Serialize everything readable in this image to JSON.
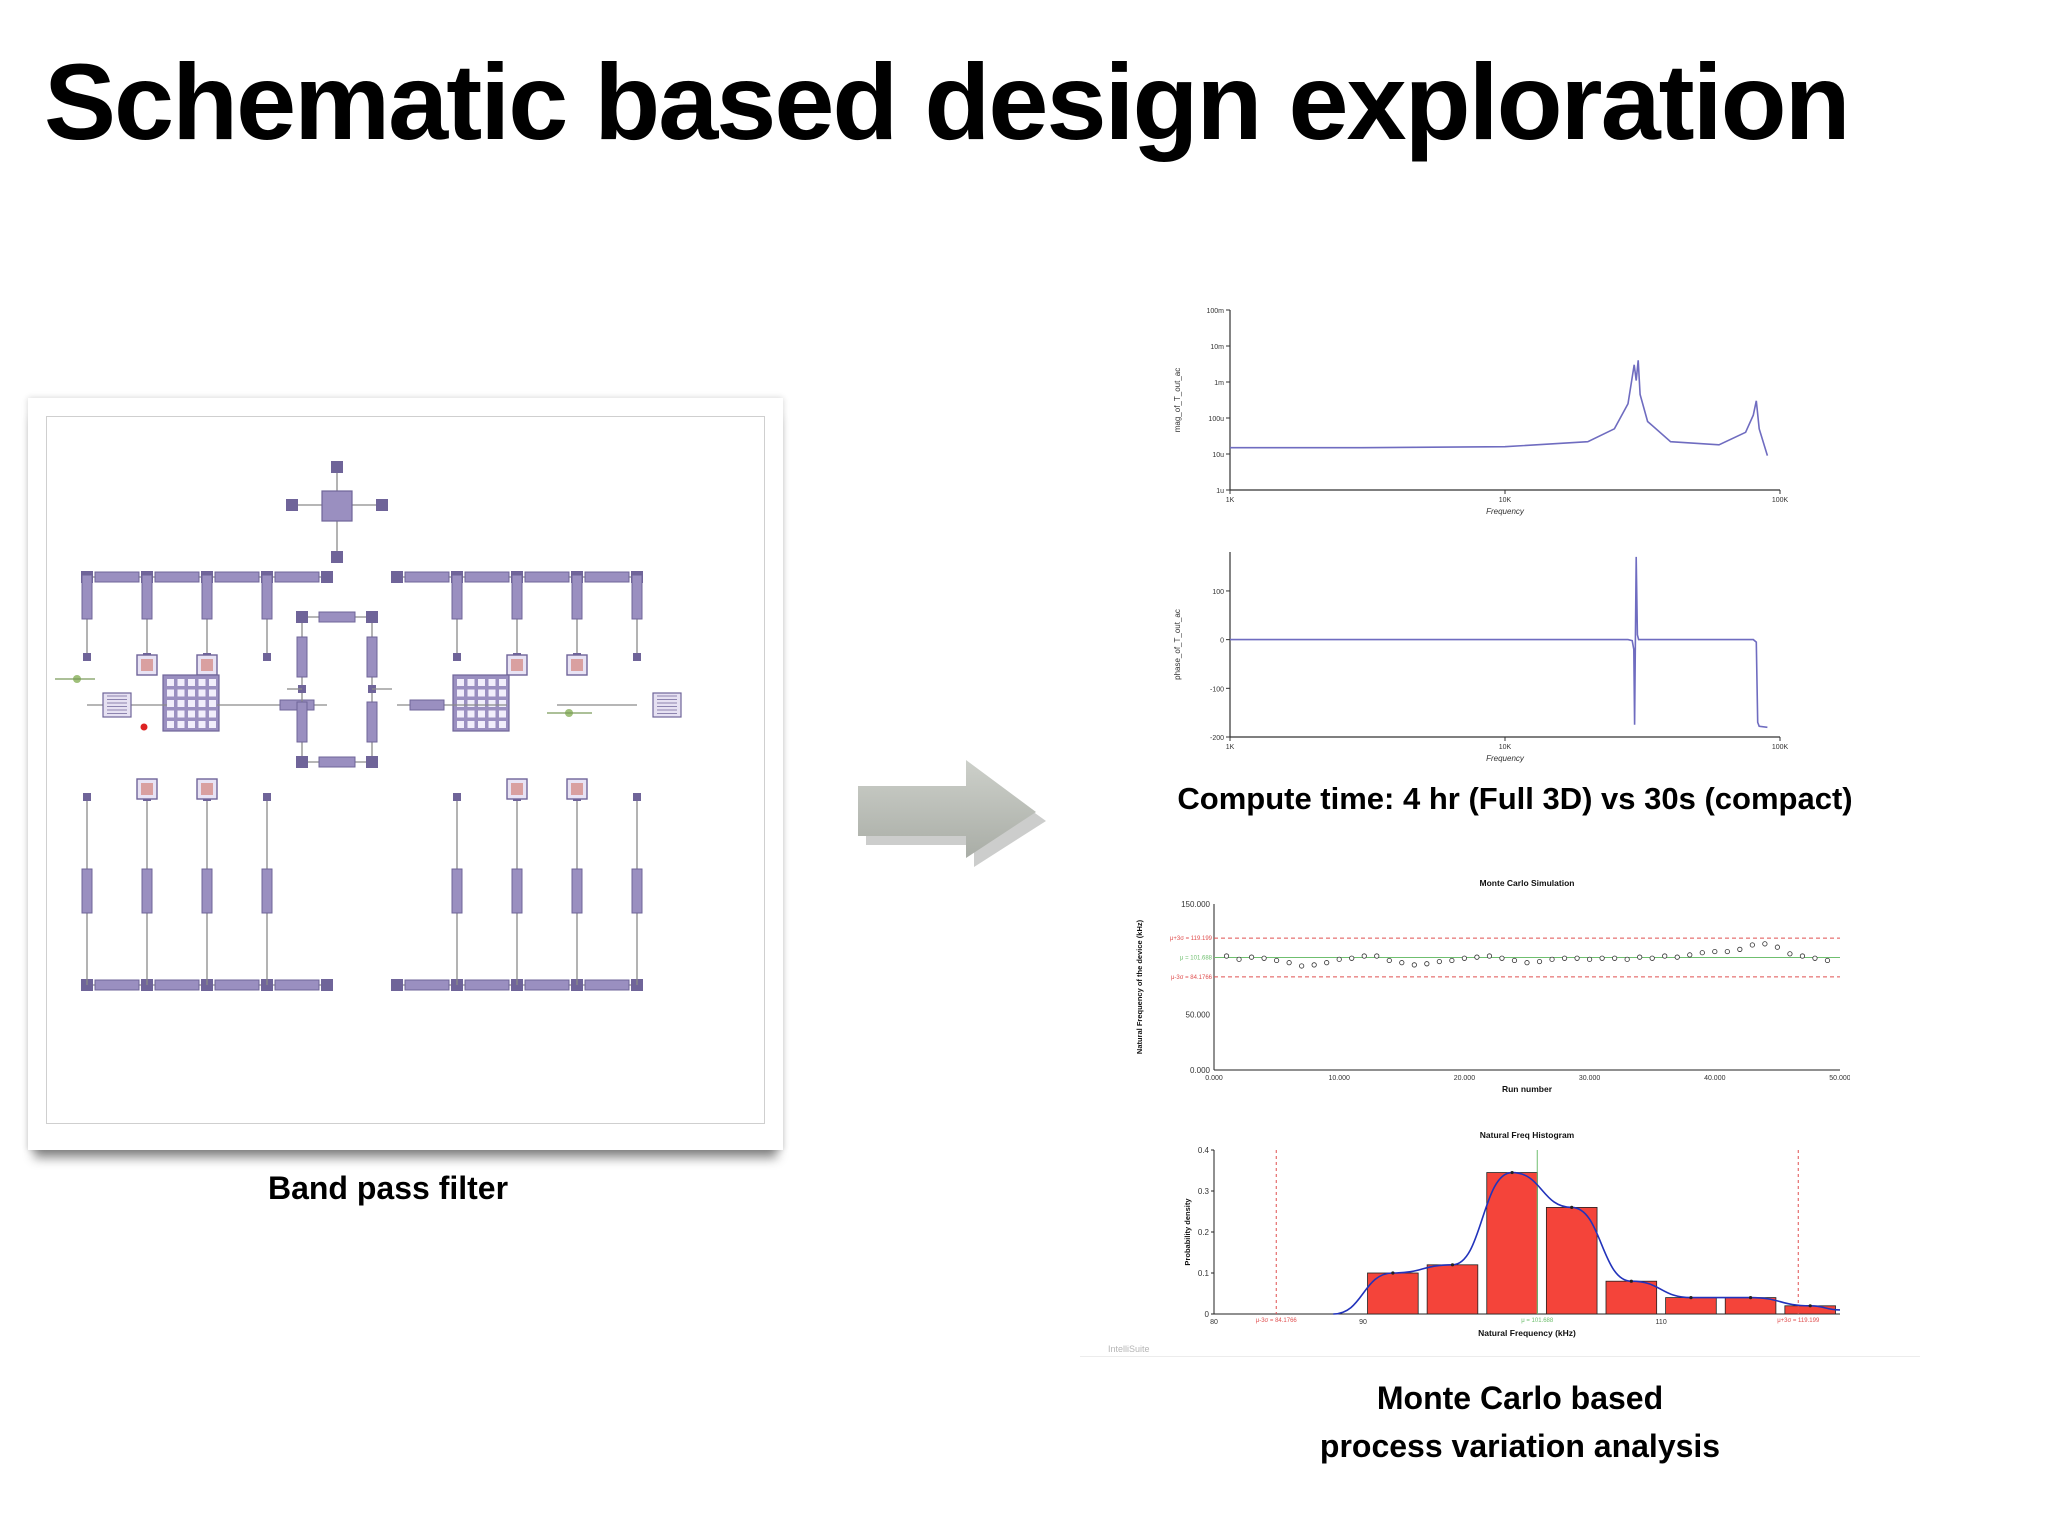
{
  "slide": {
    "title": "Schematic based design exploration",
    "left_caption": "Band pass filter",
    "compute_caption": "Compute time: 4 hr (Full 3D) vs 30s (compact)",
    "mc_caption_line1": "Monte Carlo based",
    "mc_caption_line2": "process variation analysis",
    "watermark": "IntelliSuite"
  },
  "colors": {
    "component": "#9a8fc0",
    "component_dark": "#6f6499",
    "wire": "#8a8a8a",
    "trace": "#6f6cc0",
    "bar": "#f4443a",
    "fit_curve": "#2233bb",
    "limit_line": "#e05050",
    "mean_line": "#6fbf6f",
    "arrow": "#b9bdb6"
  },
  "chart_data": [
    {
      "type": "line",
      "title": "",
      "xlabel": "Frequency",
      "ylabel": "mag_of_T_out_ac",
      "xscale": "log",
      "yscale": "log",
      "xlim": [
        1000,
        100000
      ],
      "x_ticks": [
        "1K",
        "10K",
        "100K"
      ],
      "y_ticks": [
        "100m",
        "10m",
        "1m",
        "100u",
        "10u",
        "1u"
      ],
      "series": [
        {
          "x": [
            1000,
            3000,
            10000,
            20000,
            25000,
            28000,
            29500,
            30000,
            30500,
            31000,
            33000,
            40000,
            60000,
            75000,
            80000,
            82000,
            84000,
            90000
          ],
          "y": [
            1.5e-05,
            1.5e-05,
            1.6e-05,
            2.2e-05,
            5e-05,
            0.00025,
            0.003,
            0.0011,
            0.004,
            0.00045,
            8e-05,
            2.2e-05,
            1.8e-05,
            4e-05,
            0.00012,
            0.0003,
            5e-05,
            9e-06
          ]
        }
      ]
    },
    {
      "type": "line",
      "title": "",
      "xlabel": "Frequency",
      "ylabel": "phase_of_T_out_ac",
      "xscale": "log",
      "xlim": [
        1000,
        100000
      ],
      "ylim": [
        -200,
        180
      ],
      "x_ticks": [
        "1K",
        "10K",
        "100K"
      ],
      "y_ticks": [
        100,
        0,
        -100,
        -200
      ],
      "series": [
        {
          "x": [
            1000,
            28000,
            29000,
            29400,
            29600,
            29800,
            30000,
            30300,
            30600,
            32000,
            80000,
            82000,
            83000,
            84000,
            90000
          ],
          "y": [
            0,
            0,
            -2,
            -20,
            -175,
            0,
            170,
            10,
            0,
            0,
            0,
            -5,
            -170,
            -178,
            -180
          ]
        }
      ]
    },
    {
      "type": "scatter",
      "title": "Monte Carlo Simulation",
      "xlabel": "Run number",
      "ylabel": "Natural Frequency of the device (kHz)",
      "xlim": [
        0,
        50
      ],
      "ylim": [
        0,
        150
      ],
      "x_ticks": [
        "0.000",
        "10.000",
        "20.000",
        "30.000",
        "40.000",
        "50.000"
      ],
      "y_ticks": [
        "0.000",
        "50.000",
        "150.000"
      ],
      "reference_lines": [
        {
          "label": "μ+3σ = 119.199",
          "value": 119.199
        },
        {
          "label": "μ = 101.688",
          "value": 101.688
        },
        {
          "label": "μ-3σ = 84.1766",
          "value": 84.1766
        }
      ],
      "x": [
        1,
        2,
        3,
        4,
        5,
        6,
        7,
        8,
        9,
        10,
        11,
        12,
        13,
        14,
        15,
        16,
        17,
        18,
        19,
        20,
        21,
        22,
        23,
        24,
        25,
        26,
        27,
        28,
        29,
        30,
        31,
        32,
        33,
        34,
        35,
        36,
        37,
        38,
        39,
        40,
        41,
        42,
        43,
        44,
        45,
        46,
        47,
        48,
        49
      ],
      "y": [
        103,
        100,
        102,
        101,
        99,
        97,
        94,
        95,
        97,
        100,
        101,
        103,
        103,
        99,
        97,
        95,
        96,
        98,
        99,
        101,
        102,
        103,
        101,
        99,
        97,
        98,
        100,
        101,
        101,
        100,
        101,
        101,
        100,
        102,
        101,
        103,
        102,
        104,
        106,
        107,
        107,
        109,
        113,
        114,
        111,
        105,
        103,
        101,
        99
      ]
    },
    {
      "type": "bar",
      "title": "Natural Freq Histogram",
      "xlabel": "Natural Frequency (kHz)",
      "ylabel": "Probability density",
      "xlim": [
        80,
        122
      ],
      "ylim": [
        0,
        0.4
      ],
      "x_ticks": [
        "80",
        "90",
        "110"
      ],
      "y_ticks": [
        "0",
        "0.1",
        "0.2",
        "0.3",
        "0.4"
      ],
      "bin_centers": [
        92,
        96,
        100,
        104,
        108,
        112,
        116,
        120
      ],
      "values": [
        0.1,
        0.12,
        0.345,
        0.26,
        0.08,
        0.04,
        0.04,
        0.02
      ],
      "reference_lines": [
        {
          "label": "μ-3σ = 84.1766",
          "value": 84.1766
        },
        {
          "label": "μ = 101.688",
          "value": 101.688
        },
        {
          "label": "μ+3σ = 119.199",
          "value": 119.199
        }
      ]
    }
  ]
}
